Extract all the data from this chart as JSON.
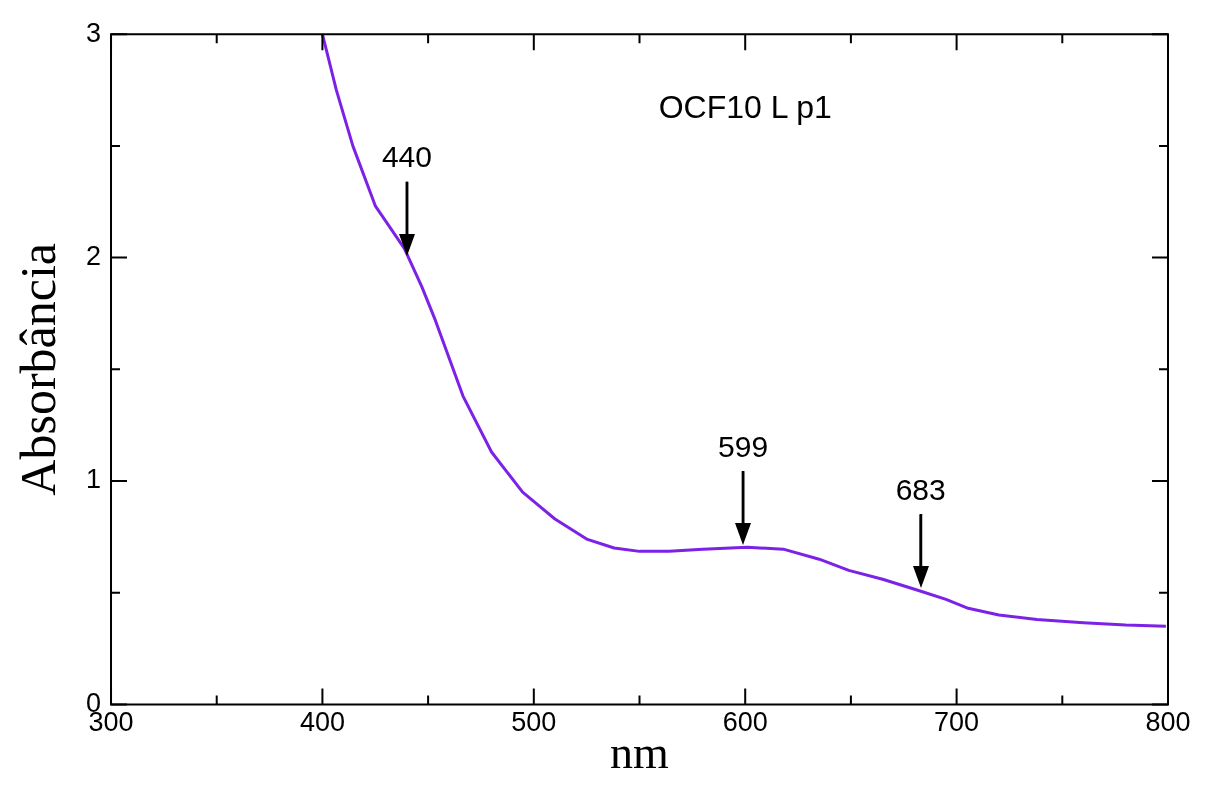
{
  "chart_data": {
    "type": "line",
    "title": "OCF10 L p1",
    "xlabel": "nm",
    "ylabel": "Absorbância",
    "x": [
      400,
      406.6,
      414.4,
      425.1,
      438.8,
      447,
      453.4,
      466.5,
      480,
      494.7,
      510,
      525,
      538,
      550,
      564,
      580,
      601,
      618,
      635,
      649,
      665,
      682,
      695,
      705.5,
      720,
      738,
      760,
      780,
      799
    ],
    "series": [
      {
        "color": "#7b22e6",
        "values": [
          3.0,
          2.75,
          2.5,
          2.23,
          2.04,
          1.87,
          1.72,
          1.38,
          1.13,
          0.95,
          0.83,
          0.74,
          0.7,
          0.685,
          0.686,
          0.695,
          0.703,
          0.695,
          0.65,
          0.6,
          0.56,
          0.51,
          0.47,
          0.43,
          0.4,
          0.38,
          0.365,
          0.355,
          0.35
        ]
      }
    ],
    "xlim": [
      300,
      800
    ],
    "xticks": [
      300,
      {
        "value": 350,
        "label": null
      },
      400,
      {
        "value": 450,
        "label": null
      },
      500,
      {
        "value": 550,
        "label": null
      },
      600,
      {
        "value": 650,
        "label": null
      },
      700,
      {
        "value": 750,
        "label": null
      },
      800
    ],
    "ylim": [
      0,
      3
    ],
    "yticks": [
      0,
      {
        "value": 0.5,
        "label": null
      },
      1,
      {
        "value": 1.5,
        "label": null
      },
      2,
      {
        "value": 2.5,
        "label": null
      },
      3
    ],
    "grid": false,
    "legend": false,
    "marker": "none",
    "line_style": "solid",
    "annotations": [
      {
        "text": "440",
        "x": 440,
        "y": 2.0
      },
      {
        "text": "599",
        "x": 599,
        "y": 0.703
      },
      {
        "text": "683",
        "x": 683,
        "y": 0.51
      }
    ]
  }
}
